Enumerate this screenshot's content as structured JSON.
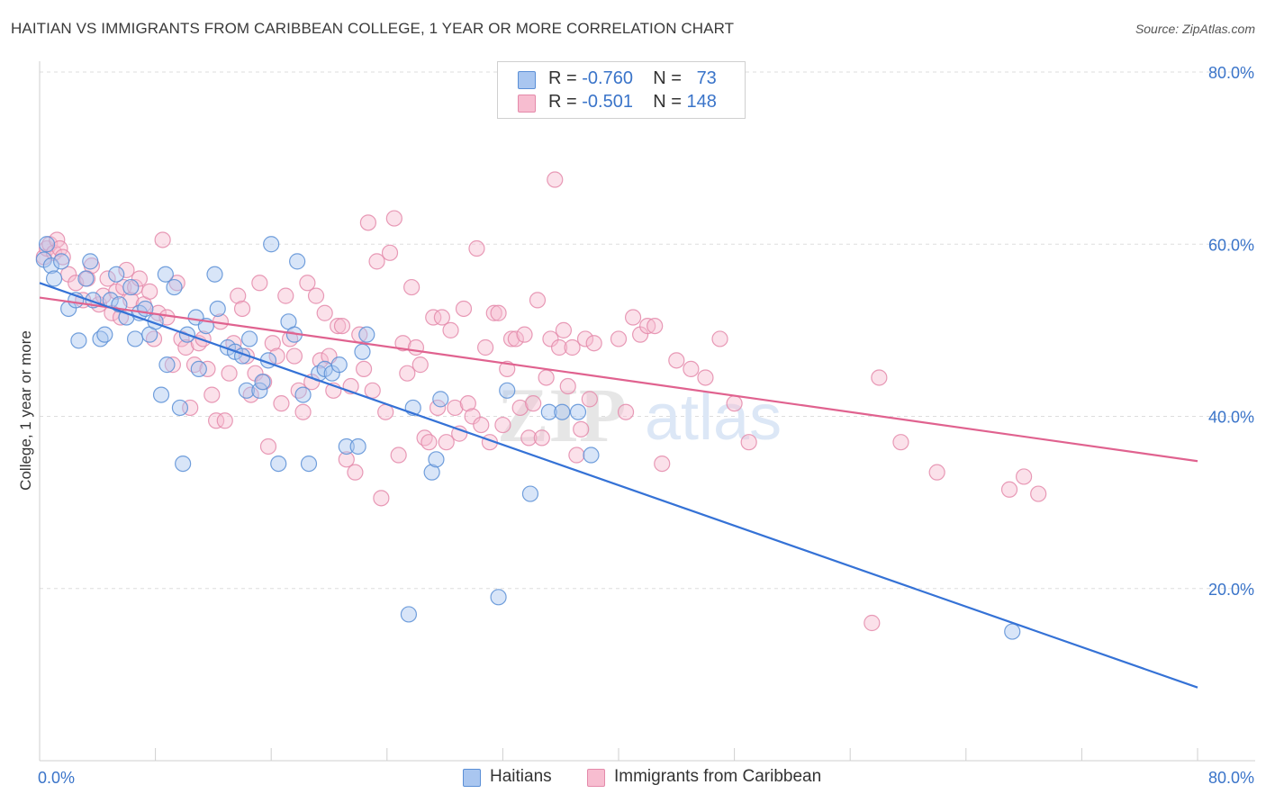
{
  "header": {
    "title": "HAITIAN VS IMMIGRANTS FROM CARIBBEAN COLLEGE, 1 YEAR OR MORE CORRELATION CHART",
    "source": "Source: ZipAtlas.com"
  },
  "legend": {
    "rows": [
      {
        "r_label": "R =",
        "r_value": "-0.760",
        "n_label": "N =",
        "n_value": "73"
      },
      {
        "r_label": "R =",
        "r_value": "-0.501",
        "n_label": "N =",
        "n_value": "148"
      }
    ]
  },
  "watermark": {
    "zip": "ZIP",
    "atlas": "atlas"
  },
  "colors": {
    "blue_fill": "#a9c6f0",
    "blue_stroke": "#5b8fd6",
    "blue_line": "#3572d6",
    "pink_fill": "#f7bdd0",
    "pink_stroke": "#e48aaa",
    "pink_line": "#e0628f",
    "axis_label": "#3a74c9",
    "grid": "#dddddd"
  },
  "chart_data": {
    "type": "scatter",
    "title": "HAITIAN VS IMMIGRANTS FROM CARIBBEAN COLLEGE, 1 YEAR OR MORE CORRELATION CHART",
    "xlabel": "",
    "ylabel": "College, 1 year or more",
    "xlim": [
      0,
      80
    ],
    "ylim": [
      0,
      80
    ],
    "x_tick_labels": [
      "0.0%",
      "80.0%"
    ],
    "y_tick_labels": [
      "20.0%",
      "40.0%",
      "60.0%",
      "80.0%"
    ],
    "y_ticks": [
      20,
      40,
      60,
      80
    ],
    "grid": true,
    "legend_position": "top-center",
    "series": [
      {
        "name": "Haitians",
        "color": "#a9c6f0",
        "trend": {
          "x": [
            0,
            80
          ],
          "y": [
            55.5,
            8.5
          ]
        },
        "points": [
          [
            0.3,
            58.2
          ],
          [
            0.5,
            60.0
          ],
          [
            0.8,
            57.5
          ],
          [
            1.0,
            56.0
          ],
          [
            1.5,
            58.0
          ],
          [
            2.0,
            52.5
          ],
          [
            2.5,
            53.5
          ],
          [
            2.7,
            48.8
          ],
          [
            3.2,
            56.0
          ],
          [
            3.5,
            58.0
          ],
          [
            3.7,
            53.5
          ],
          [
            4.2,
            49.0
          ],
          [
            4.5,
            49.5
          ],
          [
            4.9,
            53.5
          ],
          [
            5.3,
            56.5
          ],
          [
            5.5,
            53.0
          ],
          [
            6.0,
            51.5
          ],
          [
            6.3,
            55.0
          ],
          [
            6.6,
            49.0
          ],
          [
            6.9,
            52.0
          ],
          [
            7.3,
            52.5
          ],
          [
            7.6,
            49.5
          ],
          [
            8.0,
            51.0
          ],
          [
            8.4,
            42.5
          ],
          [
            8.7,
            56.5
          ],
          [
            8.8,
            46.0
          ],
          [
            9.3,
            55.0
          ],
          [
            9.7,
            41.0
          ],
          [
            9.9,
            34.5
          ],
          [
            10.2,
            49.5
          ],
          [
            10.8,
            51.5
          ],
          [
            11.0,
            45.5
          ],
          [
            11.5,
            50.5
          ],
          [
            12.1,
            56.5
          ],
          [
            12.3,
            52.5
          ],
          [
            13.0,
            48.0
          ],
          [
            13.5,
            47.5
          ],
          [
            14.0,
            47.0
          ],
          [
            14.3,
            43.0
          ],
          [
            14.5,
            49.0
          ],
          [
            15.2,
            43.0
          ],
          [
            15.4,
            44.0
          ],
          [
            15.8,
            46.5
          ],
          [
            16.0,
            60.0
          ],
          [
            16.5,
            34.5
          ],
          [
            17.2,
            51.0
          ],
          [
            17.6,
            49.5
          ],
          [
            17.8,
            58.0
          ],
          [
            18.2,
            42.5
          ],
          [
            18.6,
            34.5
          ],
          [
            19.3,
            45.0
          ],
          [
            19.7,
            45.5
          ],
          [
            20.2,
            45.0
          ],
          [
            20.7,
            46.0
          ],
          [
            21.2,
            36.5
          ],
          [
            22.0,
            36.5
          ],
          [
            22.3,
            47.5
          ],
          [
            22.6,
            49.5
          ],
          [
            25.5,
            17.0
          ],
          [
            25.8,
            41.0
          ],
          [
            27.1,
            33.5
          ],
          [
            27.4,
            35.0
          ],
          [
            27.7,
            42.0
          ],
          [
            31.7,
            19.0
          ],
          [
            32.3,
            43.0
          ],
          [
            33.9,
            31.0
          ],
          [
            35.2,
            40.5
          ],
          [
            36.1,
            40.5
          ],
          [
            37.2,
            40.5
          ],
          [
            38.1,
            35.5
          ],
          [
            67.2,
            15.0
          ]
        ]
      },
      {
        "name": "Immigrants from Caribbean",
        "color": "#f7bdd0",
        "trend": {
          "x": [
            0,
            80
          ],
          "y": [
            53.8,
            34.8
          ]
        },
        "points": [
          [
            0.3,
            58.5
          ],
          [
            0.5,
            59.5
          ],
          [
            0.7,
            60.0
          ],
          [
            1.0,
            59.0
          ],
          [
            1.2,
            60.5
          ],
          [
            1.4,
            59.5
          ],
          [
            1.6,
            58.5
          ],
          [
            2.0,
            56.5
          ],
          [
            2.5,
            55.5
          ],
          [
            3.0,
            53.5
          ],
          [
            3.3,
            56.0
          ],
          [
            3.6,
            57.5
          ],
          [
            4.1,
            53.0
          ],
          [
            4.4,
            54.0
          ],
          [
            4.7,
            56.0
          ],
          [
            5.0,
            52.0
          ],
          [
            5.3,
            54.5
          ],
          [
            5.6,
            51.5
          ],
          [
            5.8,
            55.0
          ],
          [
            6.0,
            57.0
          ],
          [
            6.3,
            53.5
          ],
          [
            6.6,
            55.0
          ],
          [
            6.9,
            56.0
          ],
          [
            7.2,
            53.0
          ],
          [
            7.6,
            54.5
          ],
          [
            7.9,
            49.0
          ],
          [
            8.2,
            52.0
          ],
          [
            8.5,
            60.5
          ],
          [
            8.8,
            51.5
          ],
          [
            9.2,
            46.0
          ],
          [
            9.5,
            55.5
          ],
          [
            9.8,
            49.0
          ],
          [
            10.1,
            48.0
          ],
          [
            10.4,
            41.0
          ],
          [
            10.7,
            46.0
          ],
          [
            11.0,
            48.5
          ],
          [
            11.3,
            49.0
          ],
          [
            11.6,
            45.5
          ],
          [
            11.9,
            42.5
          ],
          [
            12.2,
            39.5
          ],
          [
            12.5,
            51.0
          ],
          [
            12.8,
            39.5
          ],
          [
            13.1,
            45.0
          ],
          [
            13.4,
            48.5
          ],
          [
            13.7,
            54.0
          ],
          [
            14.0,
            52.5
          ],
          [
            14.3,
            47.0
          ],
          [
            14.6,
            42.5
          ],
          [
            14.9,
            45.0
          ],
          [
            15.2,
            55.5
          ],
          [
            15.5,
            44.0
          ],
          [
            15.8,
            36.5
          ],
          [
            16.1,
            48.5
          ],
          [
            16.4,
            47.0
          ],
          [
            16.7,
            41.5
          ],
          [
            17.0,
            54.0
          ],
          [
            17.3,
            49.0
          ],
          [
            17.6,
            47.0
          ],
          [
            17.9,
            43.0
          ],
          [
            18.2,
            40.5
          ],
          [
            18.5,
            55.5
          ],
          [
            18.8,
            44.0
          ],
          [
            19.1,
            54.0
          ],
          [
            19.4,
            46.5
          ],
          [
            19.7,
            52.0
          ],
          [
            20.0,
            47.0
          ],
          [
            20.3,
            43.0
          ],
          [
            20.6,
            50.5
          ],
          [
            20.9,
            50.5
          ],
          [
            21.2,
            35.0
          ],
          [
            21.5,
            43.5
          ],
          [
            21.8,
            33.5
          ],
          [
            22.1,
            49.5
          ],
          [
            22.4,
            45.5
          ],
          [
            22.7,
            62.5
          ],
          [
            23.0,
            43.0
          ],
          [
            23.3,
            58.0
          ],
          [
            23.6,
            30.5
          ],
          [
            23.9,
            40.5
          ],
          [
            24.2,
            59.0
          ],
          [
            24.5,
            63.0
          ],
          [
            24.8,
            35.5
          ],
          [
            25.1,
            48.5
          ],
          [
            25.4,
            45.0
          ],
          [
            25.7,
            55.0
          ],
          [
            26.0,
            48.0
          ],
          [
            26.3,
            46.0
          ],
          [
            26.6,
            37.5
          ],
          [
            26.9,
            37.0
          ],
          [
            27.2,
            51.5
          ],
          [
            27.5,
            41.0
          ],
          [
            27.8,
            51.5
          ],
          [
            28.1,
            37.0
          ],
          [
            28.4,
            50.0
          ],
          [
            28.7,
            41.0
          ],
          [
            29.0,
            38.0
          ],
          [
            29.3,
            52.5
          ],
          [
            29.6,
            41.5
          ],
          [
            29.9,
            40.0
          ],
          [
            30.2,
            59.5
          ],
          [
            30.5,
            39.0
          ],
          [
            30.8,
            48.0
          ],
          [
            31.1,
            37.0
          ],
          [
            31.4,
            52.0
          ],
          [
            31.7,
            52.0
          ],
          [
            32.0,
            39.0
          ],
          [
            32.3,
            45.5
          ],
          [
            32.6,
            49.0
          ],
          [
            32.9,
            49.0
          ],
          [
            33.2,
            41.0
          ],
          [
            33.5,
            49.5
          ],
          [
            33.8,
            37.5
          ],
          [
            34.1,
            41.5
          ],
          [
            34.4,
            53.5
          ],
          [
            34.7,
            37.5
          ],
          [
            35.0,
            44.5
          ],
          [
            35.3,
            49.0
          ],
          [
            35.6,
            67.5
          ],
          [
            35.9,
            48.0
          ],
          [
            36.2,
            50.0
          ],
          [
            36.5,
            43.5
          ],
          [
            36.8,
            48.0
          ],
          [
            37.1,
            35.5
          ],
          [
            37.4,
            38.5
          ],
          [
            37.7,
            49.0
          ],
          [
            38.0,
            42.0
          ],
          [
            38.3,
            48.5
          ],
          [
            40.0,
            49.0
          ],
          [
            40.5,
            40.5
          ],
          [
            41.0,
            51.5
          ],
          [
            41.5,
            49.5
          ],
          [
            42.0,
            50.5
          ],
          [
            42.5,
            50.5
          ],
          [
            43.0,
            34.5
          ],
          [
            44.0,
            46.5
          ],
          [
            45.0,
            45.5
          ],
          [
            46.0,
            44.5
          ],
          [
            47.0,
            49.0
          ],
          [
            48.0,
            41.5
          ],
          [
            49.0,
            37.0
          ],
          [
            57.5,
            16.0
          ],
          [
            58.0,
            44.5
          ],
          [
            59.5,
            37.0
          ],
          [
            62.0,
            33.5
          ],
          [
            67.0,
            31.5
          ],
          [
            68.0,
            33.0
          ],
          [
            69.0,
            31.0
          ]
        ]
      }
    ]
  }
}
